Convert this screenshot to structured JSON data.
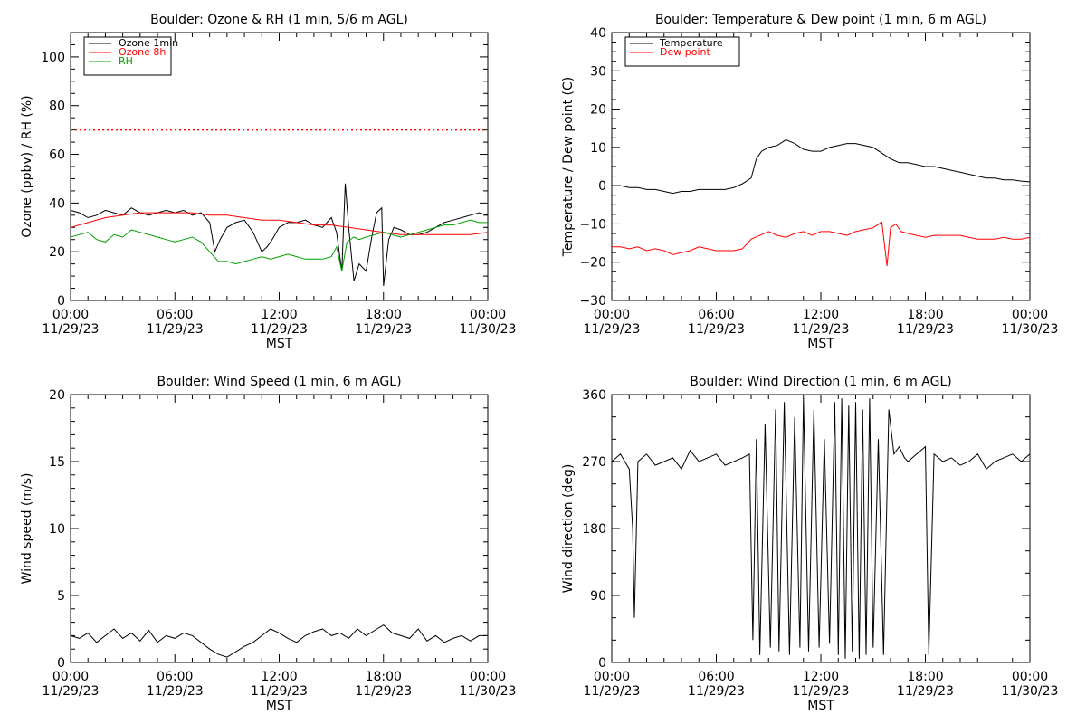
{
  "chart_data": [
    {
      "id": "ozone",
      "type": "line",
      "title": "Boulder: Ozone & RH (1 min, 5/6 m AGL)",
      "ylabel": "Ozone (ppbv) / RH (%)",
      "xlabel": "MST",
      "xlim": [
        0,
        24
      ],
      "ylim": [
        0,
        110
      ],
      "yticks": [
        0,
        20,
        40,
        60,
        80,
        100
      ],
      "ytick_labels": [
        "0",
        "20",
        "40",
        "60",
        "80",
        "100"
      ],
      "xtick_labels": [
        [
          "00:00",
          "11/29/23"
        ],
        [
          "06:00",
          "11/29/23"
        ],
        [
          "12:00",
          "11/29/23"
        ],
        [
          "18:00",
          "11/29/23"
        ],
        [
          "00:00",
          "11/30/23"
        ]
      ],
      "legend_position": "top-left",
      "reference_line": {
        "value": 70,
        "color": "#ff0000",
        "style": "dotted"
      },
      "series": [
        {
          "name": "Ozone 1min",
          "color": "#000000",
          "x": [
            0,
            0.5,
            1,
            1.5,
            2,
            2.5,
            3,
            3.5,
            4,
            4.5,
            5,
            5.5,
            6,
            6.5,
            7,
            7.5,
            8,
            8.3,
            8.6,
            9,
            9.5,
            10,
            10.5,
            11,
            11.3,
            11.6,
            12,
            12.5,
            13,
            13.5,
            14,
            14.5,
            15,
            15.3,
            15.6,
            15.8,
            16,
            16.3,
            16.6,
            17,
            17.3,
            17.6,
            17.9,
            18,
            18.3,
            18.6,
            19,
            19.5,
            20,
            20.5,
            21,
            21.5,
            22,
            22.5,
            23,
            23.5,
            24
          ],
          "y": [
            37,
            36,
            34,
            35,
            37,
            36,
            35,
            38,
            36,
            35,
            36,
            37,
            36,
            37,
            35,
            36,
            32,
            20,
            25,
            30,
            32,
            33,
            28,
            20,
            22,
            25,
            30,
            32,
            32,
            33,
            31,
            30,
            34,
            28,
            12,
            48,
            30,
            8,
            15,
            12,
            25,
            36,
            38,
            6,
            25,
            30,
            29,
            27,
            27,
            28,
            30,
            32,
            33,
            34,
            35,
            36,
            35
          ]
        },
        {
          "name": "Ozone 8h",
          "color": "#ff0000",
          "x": [
            0,
            1,
            2,
            3,
            4,
            5,
            6,
            7,
            8,
            9,
            10,
            11,
            12,
            13,
            14,
            15,
            16,
            17,
            18,
            19,
            20,
            21,
            22,
            23,
            24
          ],
          "y": [
            30,
            32,
            34,
            35,
            36,
            36,
            36,
            36,
            35,
            35,
            34,
            33,
            33,
            32,
            31,
            31,
            30,
            29,
            28,
            27,
            27,
            27,
            27,
            27,
            28
          ]
        },
        {
          "name": "RH",
          "color": "#00a000",
          "x": [
            0,
            0.5,
            1,
            1.5,
            2,
            2.5,
            3,
            3.5,
            4,
            4.5,
            5,
            5.5,
            6,
            6.5,
            7,
            7.5,
            8,
            8.5,
            9,
            9.5,
            10,
            10.5,
            11,
            11.5,
            12,
            12.5,
            13,
            13.5,
            14,
            14.5,
            15,
            15.3,
            15.6,
            15.9,
            16.3,
            16.6,
            17,
            17.5,
            18,
            18.5,
            19,
            19.5,
            20,
            20.5,
            21,
            21.5,
            22,
            22.5,
            23,
            23.5,
            24
          ],
          "y": [
            26,
            27,
            28,
            25,
            24,
            27,
            26,
            29,
            28,
            27,
            26,
            25,
            24,
            25,
            26,
            24,
            20,
            16,
            16,
            15,
            16,
            17,
            18,
            17,
            18,
            19,
            18,
            17,
            17,
            17,
            18,
            22,
            12,
            24,
            26,
            25,
            26,
            27,
            28,
            27,
            26,
            27,
            28,
            29,
            30,
            31,
            31,
            32,
            33,
            32,
            32
          ]
        }
      ]
    },
    {
      "id": "temp",
      "type": "line",
      "title": "Boulder: Temperature & Dew point (1 min, 6 m AGL)",
      "ylabel": "Temperature / Dew point (C)",
      "xlabel": "MST",
      "xlim": [
        0,
        24
      ],
      "ylim": [
        -30,
        40
      ],
      "yticks": [
        -30,
        -20,
        -10,
        0,
        10,
        20,
        30,
        40
      ],
      "ytick_labels": [
        "−30",
        "−20",
        "−10",
        "0",
        "10",
        "20",
        "30",
        "40"
      ],
      "xtick_labels": [
        [
          "00:00",
          "11/29/23"
        ],
        [
          "06:00",
          "11/29/23"
        ],
        [
          "12:00",
          "11/29/23"
        ],
        [
          "18:00",
          "11/29/23"
        ],
        [
          "00:00",
          "11/30/23"
        ]
      ],
      "legend_position": "top-left",
      "series": [
        {
          "name": "Temperature",
          "color": "#000000",
          "x": [
            0,
            0.5,
            1,
            1.5,
            2,
            2.5,
            3,
            3.5,
            4,
            4.5,
            5,
            5.5,
            6,
            6.5,
            7,
            7.5,
            8,
            8.3,
            8.6,
            9,
            9.5,
            10,
            10.5,
            11,
            11.5,
            12,
            12.5,
            13,
            13.5,
            14,
            14.5,
            15,
            15.5,
            16,
            16.5,
            17,
            17.5,
            18,
            18.5,
            19,
            19.5,
            20,
            20.5,
            21,
            21.5,
            22,
            22.5,
            23,
            23.5,
            24
          ],
          "y": [
            0,
            0,
            -0.5,
            -0.5,
            -1,
            -1,
            -1.5,
            -2,
            -1.5,
            -1.5,
            -1,
            -1,
            -1,
            -1,
            -0.5,
            0.5,
            2,
            7,
            9,
            10,
            10.5,
            12,
            11,
            9.5,
            9,
            9,
            10,
            10.5,
            11,
            11,
            10.5,
            10,
            8.5,
            7,
            6,
            6,
            5.5,
            5,
            5,
            4.5,
            4,
            3.5,
            3,
            2.5,
            2,
            2,
            1.5,
            1.5,
            1.2,
            1
          ]
        },
        {
          "name": "Dew point",
          "color": "#ff0000",
          "x": [
            0,
            0.5,
            1,
            1.5,
            2,
            2.5,
            3,
            3.5,
            4,
            4.5,
            5,
            5.5,
            6,
            6.5,
            7,
            7.5,
            8,
            8.5,
            9,
            9.5,
            10,
            10.5,
            11,
            11.5,
            12,
            12.5,
            13,
            13.5,
            14,
            14.5,
            15,
            15.5,
            15.8,
            16,
            16.3,
            16.6,
            17,
            17.5,
            18,
            18.5,
            19,
            19.5,
            20,
            20.5,
            21,
            21.5,
            22,
            22.5,
            23,
            23.5,
            24
          ],
          "y": [
            -16,
            -16,
            -16.5,
            -16,
            -17,
            -16.5,
            -17,
            -18,
            -17.5,
            -17,
            -16,
            -16.5,
            -17,
            -17,
            -17,
            -16.5,
            -14,
            -13,
            -12,
            -13,
            -13.5,
            -12.5,
            -12,
            -13,
            -12,
            -12,
            -12.5,
            -13,
            -12,
            -11.5,
            -11,
            -9.5,
            -21,
            -11,
            -10,
            -12,
            -12.5,
            -13,
            -13.5,
            -13,
            -13,
            -13,
            -13,
            -13.5,
            -14,
            -14,
            -14,
            -13.5,
            -14,
            -14,
            -13.5
          ]
        }
      ]
    },
    {
      "id": "wspd",
      "type": "line",
      "title": "Boulder: Wind Speed (1 min, 6 m AGL)",
      "ylabel": "Wind speed (m/s)",
      "xlabel": "MST",
      "xlim": [
        0,
        24
      ],
      "ylim": [
        0,
        20
      ],
      "yticks": [
        0,
        5,
        10,
        15,
        20
      ],
      "ytick_labels": [
        "0",
        "5",
        "10",
        "15",
        "20"
      ],
      "xtick_labels": [
        [
          "00:00",
          "11/29/23"
        ],
        [
          "06:00",
          "11/29/23"
        ],
        [
          "12:00",
          "11/29/23"
        ],
        [
          "18:00",
          "11/29/23"
        ],
        [
          "00:00",
          "11/30/23"
        ]
      ],
      "series": [
        {
          "name": "",
          "color": "#000000",
          "x": [
            0,
            0.5,
            1,
            1.5,
            2,
            2.5,
            3,
            3.5,
            4,
            4.5,
            5,
            5.5,
            6,
            6.5,
            7,
            7.5,
            8,
            8.5,
            9,
            9.5,
            10,
            10.5,
            11,
            11.5,
            12,
            12.5,
            13,
            13.5,
            14,
            14.5,
            15,
            15.5,
            16,
            16.5,
            17,
            17.5,
            18,
            18.5,
            19,
            19.5,
            20,
            20.5,
            21,
            21.5,
            22,
            22.5,
            23,
            23.5,
            24
          ],
          "y": [
            2,
            1.8,
            2.2,
            1.5,
            2,
            2.5,
            1.8,
            2.2,
            1.6,
            2.4,
            1.5,
            2,
            1.8,
            2.2,
            2,
            1.5,
            1,
            0.6,
            0.4,
            0.8,
            1.2,
            1.5,
            2,
            2.5,
            2.2,
            1.8,
            1.5,
            2,
            2.3,
            2.5,
            2,
            2.2,
            1.8,
            2.5,
            2,
            2.4,
            2.8,
            2.2,
            2,
            1.8,
            2.5,
            1.6,
            2,
            1.5,
            1.8,
            2,
            1.6,
            2,
            2
          ]
        }
      ]
    },
    {
      "id": "wdir",
      "type": "line",
      "title": "Boulder: Wind Direction (1 min, 6 m AGL)",
      "ylabel": "Wind direction (deg)",
      "xlabel": "MST",
      "xlim": [
        0,
        24
      ],
      "ylim": [
        0,
        360
      ],
      "yticks": [
        0,
        90,
        180,
        270,
        360
      ],
      "ytick_labels": [
        "0",
        "90",
        "180",
        "270",
        "360"
      ],
      "xtick_labels": [
        [
          "00:00",
          "11/29/23"
        ],
        [
          "06:00",
          "11/29/23"
        ],
        [
          "12:00",
          "11/29/23"
        ],
        [
          "18:00",
          "11/29/23"
        ],
        [
          "00:00",
          "11/30/23"
        ]
      ],
      "series": [
        {
          "name": "",
          "color": "#000000",
          "x": [
            0,
            0.5,
            1,
            1.2,
            1.3,
            1.5,
            2,
            2.5,
            3,
            3.5,
            4,
            4.5,
            5,
            5.5,
            6,
            6.5,
            7,
            7.5,
            7.9,
            8.1,
            8.3,
            8.5,
            8.8,
            9.1,
            9.4,
            9.6,
            9.9,
            10.2,
            10.5,
            10.8,
            11.0,
            11.3,
            11.6,
            11.9,
            12.2,
            12.5,
            12.8,
            13.0,
            13.2,
            13.4,
            13.6,
            13.8,
            14.0,
            14.2,
            14.4,
            14.6,
            14.8,
            15.0,
            15.3,
            15.6,
            15.9,
            16.2,
            16.5,
            16.8,
            17.0,
            17.5,
            18.0,
            18.2,
            18.5,
            19,
            19.5,
            20,
            20.5,
            21,
            21.5,
            22,
            22.5,
            23,
            23.5,
            24
          ],
          "y": [
            270,
            280,
            260,
            180,
            60,
            270,
            280,
            265,
            270,
            275,
            260,
            285,
            270,
            275,
            280,
            265,
            270,
            275,
            280,
            30,
            300,
            10,
            320,
            20,
            340,
            15,
            350,
            10,
            330,
            20,
            355,
            15,
            340,
            20,
            300,
            25,
            350,
            10,
            355,
            5,
            345,
            15,
            350,
            5,
            340,
            10,
            355,
            20,
            300,
            10,
            340,
            280,
            290,
            275,
            270,
            280,
            290,
            10,
            280,
            270,
            275,
            265,
            270,
            280,
            260,
            270,
            275,
            280,
            270,
            280
          ]
        }
      ]
    }
  ]
}
